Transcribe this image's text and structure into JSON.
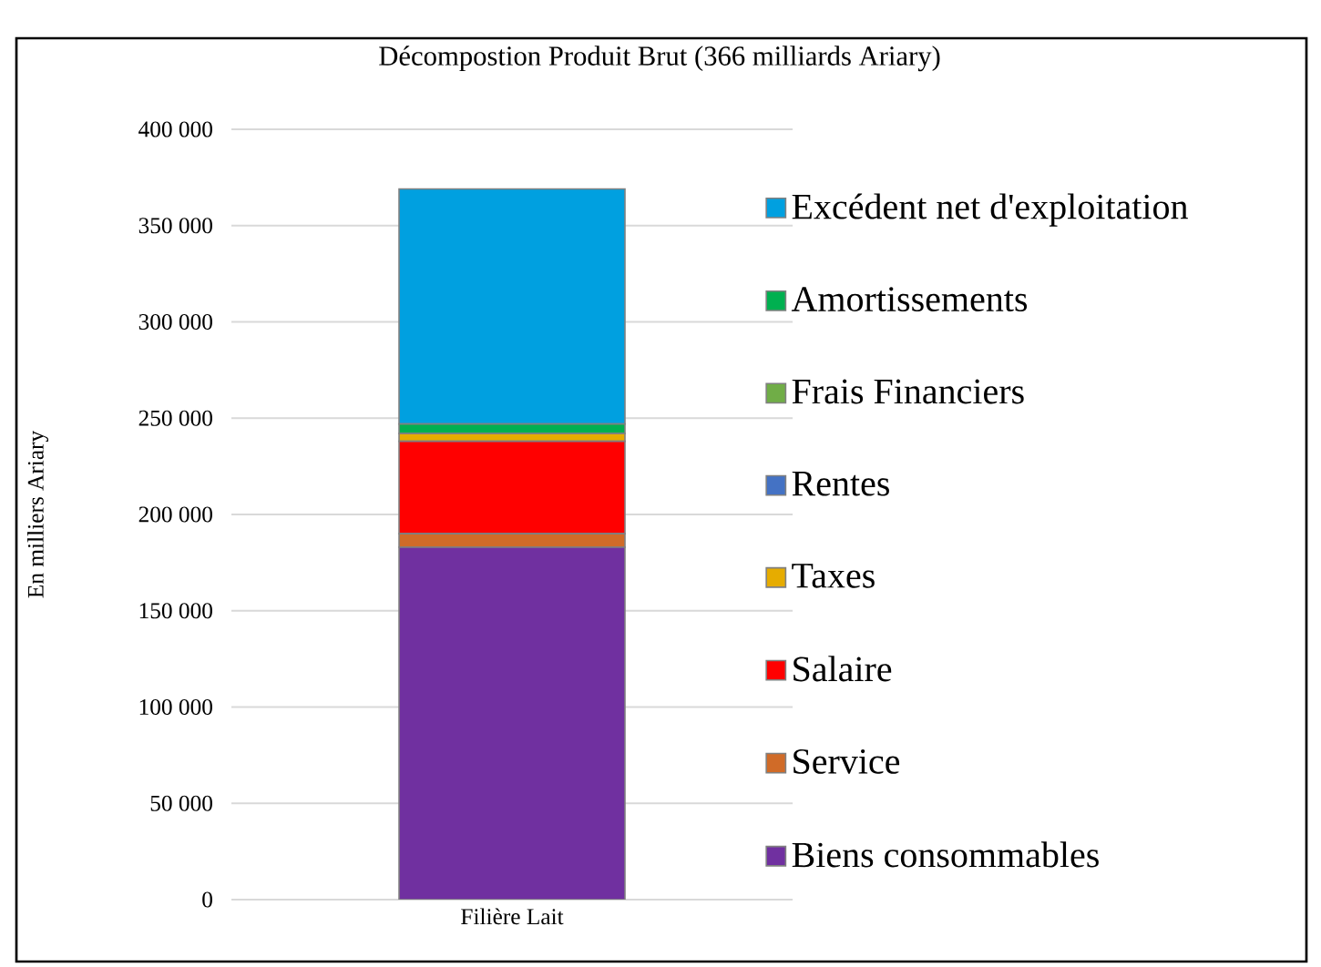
{
  "chart_data": {
    "type": "bar",
    "stacked": true,
    "title": "Décompostion  Produit  Brut  (366 milliards  Ariary)",
    "ylabel": "En milliers  Ariary",
    "categories": [
      "Filière Lait"
    ],
    "series": [
      {
        "name": "Biens consommables",
        "color": "#7030a0",
        "values": [
          183000
        ]
      },
      {
        "name": "Service",
        "color": "#d06b28",
        "values": [
          7000
        ]
      },
      {
        "name": "Salaire",
        "color": "#ff0000",
        "values": [
          48000
        ]
      },
      {
        "name": "Taxes",
        "color": "#e6ac00",
        "values": [
          4000
        ]
      },
      {
        "name": "Rentes",
        "color": "#4472c4",
        "values": [
          null
        ]
      },
      {
        "name": "Frais Financiers",
        "color": "#70ad47",
        "values": [
          null
        ]
      },
      {
        "name": "Amortissements",
        "color": "#00b050",
        "values": [
          5000
        ]
      },
      {
        "name": "Excédent net d'exploitation",
        "color": "#00a0e0",
        "values": [
          122000
        ]
      }
    ],
    "ylim": [
      0,
      400000
    ],
    "yticks": [
      {
        "value": 0,
        "label": "0"
      },
      {
        "value": 50000,
        "label": "50 000"
      },
      {
        "value": 100000,
        "label": "100 000"
      },
      {
        "value": 150000,
        "label": "150 000"
      },
      {
        "value": 200000,
        "label": "200 000"
      },
      {
        "value": 250000,
        "label": "250 000"
      },
      {
        "value": 300000,
        "label": "300 000"
      },
      {
        "value": 350000,
        "label": "350 000"
      },
      {
        "value": 400000,
        "label": "400 000"
      }
    ],
    "grid": "y",
    "legend": "right"
  }
}
